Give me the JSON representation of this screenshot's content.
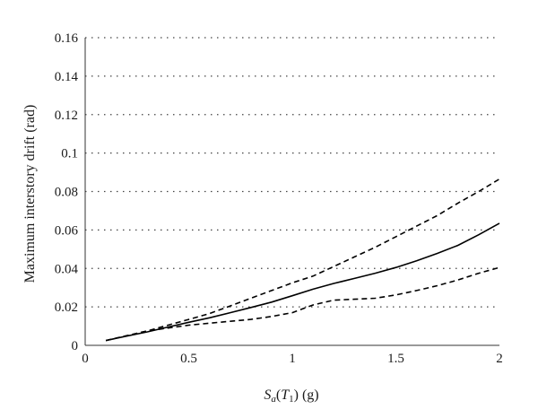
{
  "chart_data": {
    "type": "line",
    "title": "",
    "xlabel": {
      "S": "S",
      "sub_a": "a",
      "open": "(",
      "T": "T",
      "sub_1": "1",
      "close": ")",
      "unit": " (g)"
    },
    "ylabel": "Maximum interstory drift (rad)",
    "xlim": [
      0,
      2
    ],
    "ylim": [
      0,
      0.16
    ],
    "xticks": [
      {
        "value": 0,
        "label": "0"
      },
      {
        "value": 0.5,
        "label": "0.5"
      },
      {
        "value": 1,
        "label": "1"
      },
      {
        "value": 1.5,
        "label": "1.5"
      },
      {
        "value": 2,
        "label": "2"
      }
    ],
    "yticks": [
      {
        "value": 0,
        "label": "0"
      },
      {
        "value": 0.02,
        "label": "0.02"
      },
      {
        "value": 0.04,
        "label": "0.04"
      },
      {
        "value": 0.06,
        "label": "0.06"
      },
      {
        "value": 0.08,
        "label": "0.08"
      },
      {
        "value": 0.1,
        "label": "0.1"
      },
      {
        "value": 0.12,
        "label": "0.12"
      },
      {
        "value": 0.14,
        "label": "0.14"
      },
      {
        "value": 0.16,
        "label": "0.16"
      }
    ],
    "grid": "horizontal-dotted",
    "series": [
      {
        "style": "dashed",
        "x": [
          0.1,
          0.2,
          0.3,
          0.4,
          0.5,
          0.6,
          0.7,
          0.8,
          0.9,
          1.0,
          1.1,
          1.2,
          1.3,
          1.4,
          1.5,
          1.6,
          1.7,
          1.8,
          1.9,
          2.0
        ],
        "y": [
          0.0025,
          0.005,
          0.0075,
          0.0105,
          0.0135,
          0.0165,
          0.0205,
          0.0245,
          0.0285,
          0.0325,
          0.036,
          0.041,
          0.046,
          0.051,
          0.0565,
          0.062,
          0.0675,
          0.074,
          0.08,
          0.0865
        ]
      },
      {
        "style": "solid",
        "x": [
          0.1,
          0.2,
          0.3,
          0.4,
          0.5,
          0.6,
          0.7,
          0.8,
          0.9,
          1.0,
          1.1,
          1.2,
          1.3,
          1.4,
          1.5,
          1.6,
          1.7,
          1.8,
          1.9,
          2.0
        ],
        "y": [
          0.0025,
          0.0048,
          0.007,
          0.0095,
          0.012,
          0.0143,
          0.017,
          0.0197,
          0.0225,
          0.0258,
          0.0292,
          0.0322,
          0.0348,
          0.0375,
          0.0405,
          0.044,
          0.0478,
          0.052,
          0.0575,
          0.0635
        ]
      },
      {
        "style": "dashed",
        "x": [
          0.1,
          0.2,
          0.3,
          0.4,
          0.5,
          0.6,
          0.7,
          0.8,
          0.9,
          1.0,
          1.1,
          1.2,
          1.3,
          1.4,
          1.5,
          1.6,
          1.7,
          1.8,
          1.9,
          2.0
        ],
        "y": [
          0.0025,
          0.005,
          0.0075,
          0.009,
          0.0105,
          0.0115,
          0.0125,
          0.0135,
          0.015,
          0.017,
          0.021,
          0.0235,
          0.024,
          0.0245,
          0.0262,
          0.0285,
          0.031,
          0.034,
          0.0375,
          0.0405
        ]
      }
    ]
  }
}
